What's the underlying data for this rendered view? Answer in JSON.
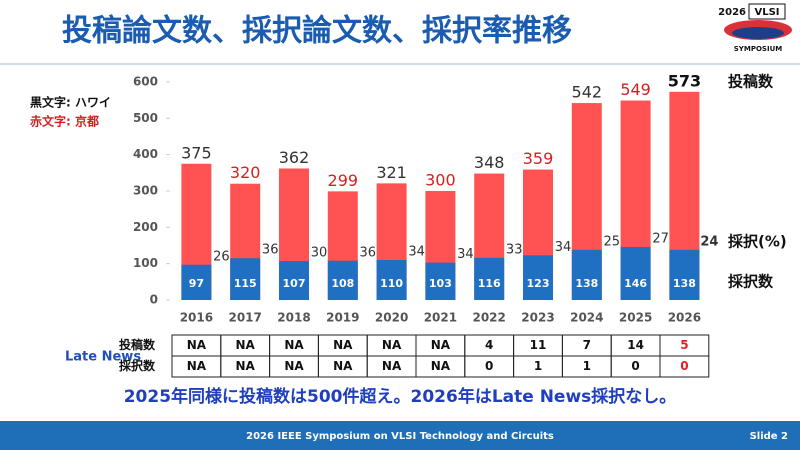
{
  "header": {
    "title": "投稿論文数、採択論文数、採択率推移",
    "logo": {
      "year": "2026",
      "name": "VLSI",
      "sub": "SYMPOSIUM"
    }
  },
  "notes": [
    {
      "text": "黒文字: ハワイ",
      "color": "#111111"
    },
    {
      "text": "赤文字: 京都",
      "color": "#d42020"
    }
  ],
  "chart_data": {
    "type": "bar",
    "categories": [
      "2016",
      "2017",
      "2018",
      "2019",
      "2020",
      "2021",
      "2022",
      "2023",
      "2024",
      "2025",
      "2026"
    ],
    "series": [
      {
        "name": "投稿数",
        "color": "#ff5252",
        "values": [
          375,
          320,
          362,
          299,
          321,
          300,
          348,
          359,
          542,
          549,
          573
        ],
        "label_colors": [
          "#333333",
          "#d42020",
          "#333333",
          "#d42020",
          "#333333",
          "#d42020",
          "#333333",
          "#d42020",
          "#333333",
          "#d42020",
          "#111111"
        ]
      },
      {
        "name": "採択数",
        "color": "#1f6fc2",
        "values": [
          97,
          115,
          107,
          108,
          110,
          103,
          116,
          123,
          138,
          146,
          138
        ]
      }
    ],
    "rate": {
      "name": "採択(%)",
      "values": [
        26,
        36,
        30,
        36,
        34,
        34,
        33,
        34,
        25,
        27,
        24
      ]
    },
    "ylim": [
      0,
      600
    ],
    "yticks": [
      0,
      100,
      200,
      300,
      400,
      500,
      600
    ]
  },
  "late_news": {
    "title": "Late News",
    "row_labels": [
      "投稿数",
      "採択数"
    ],
    "rows": [
      [
        "NA",
        "NA",
        "NA",
        "NA",
        "NA",
        "NA",
        "4",
        "11",
        "7",
        "14",
        "5"
      ],
      [
        "NA",
        "NA",
        "NA",
        "NA",
        "NA",
        "NA",
        "0",
        "1",
        "1",
        "0",
        "0"
      ]
    ],
    "highlight_color": "#e02020",
    "highlight_columns": [
      10
    ]
  },
  "summary": "2025年同様に投稿数は500件超え。2026年はLate News採択なし。",
  "footer": {
    "text": "2026 IEEE Symposium on VLSI Technology and Circuits",
    "slide": "Slide 2"
  }
}
